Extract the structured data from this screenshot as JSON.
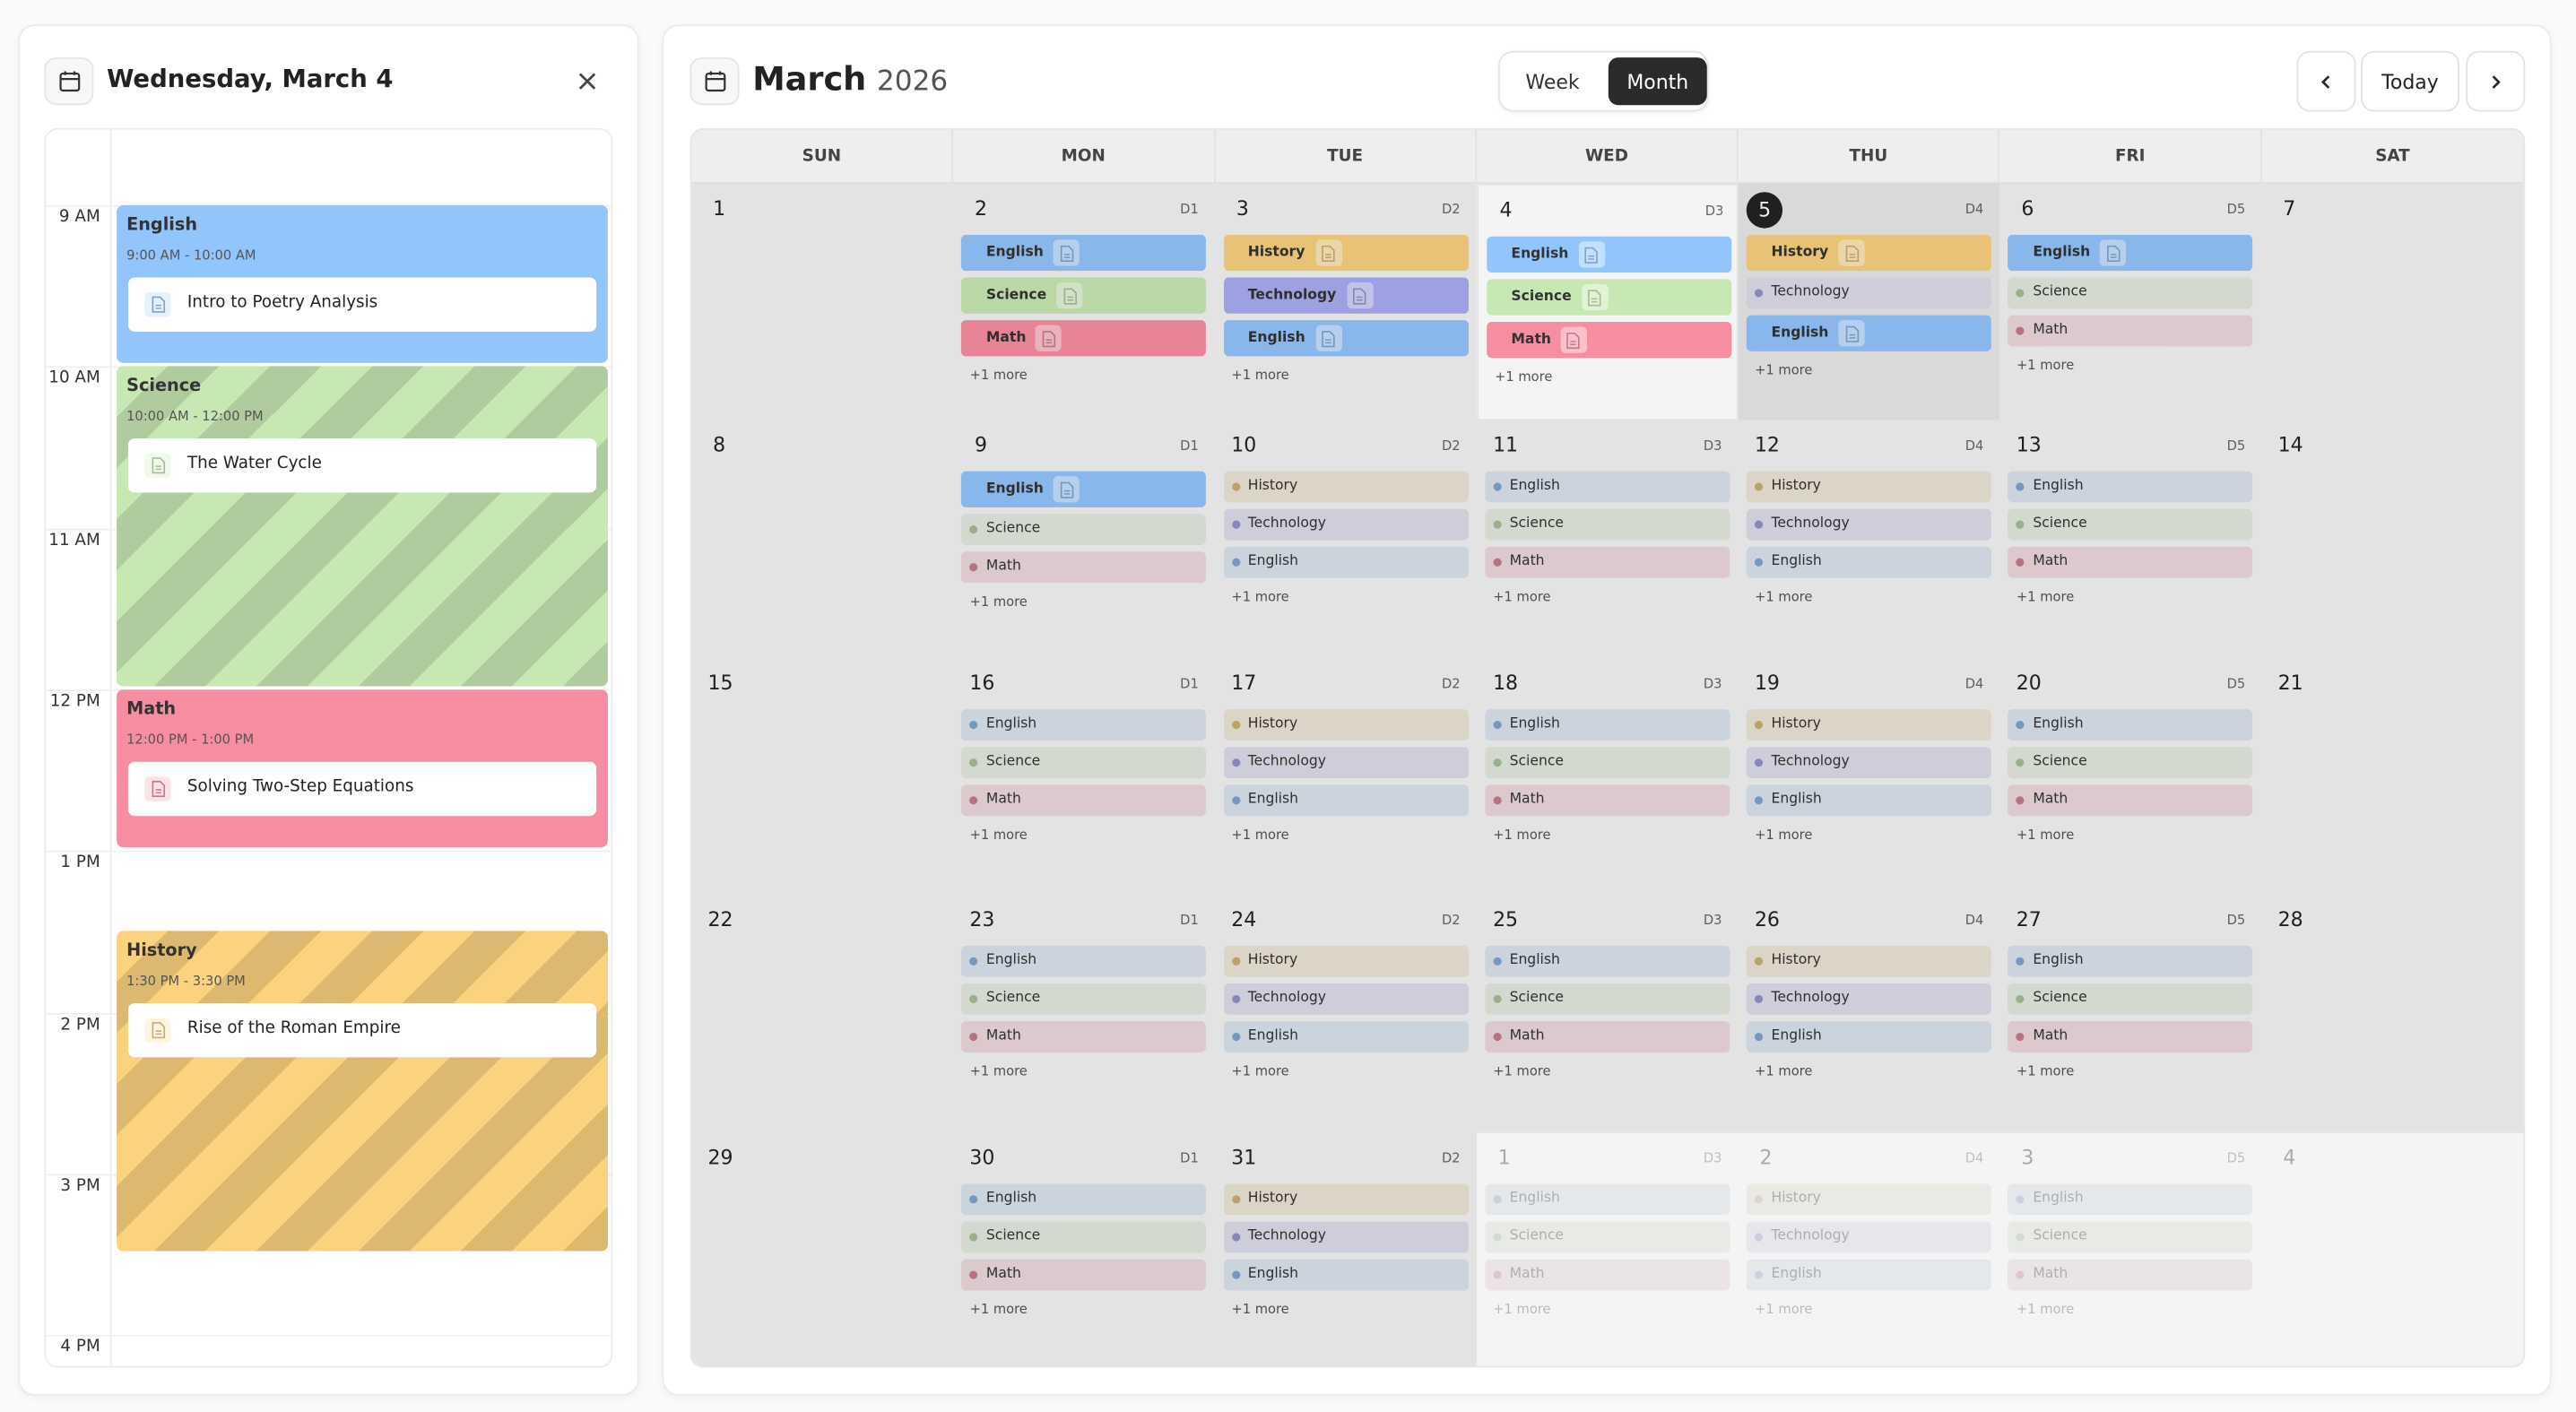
{
  "sidebar": {
    "title": "Wednesday, March 4",
    "hours": [
      "9 AM",
      "10 AM",
      "11 AM",
      "12 PM",
      "1 PM",
      "2 PM",
      "3 PM",
      "4 PM"
    ],
    "events": [
      {
        "subject": "English",
        "time": "9:00 AM - 10:00 AM",
        "lesson": "Intro to Poetry Analysis"
      },
      {
        "subject": "Science",
        "time": "10:00 AM - 12:00 PM",
        "lesson": "The Water Cycle"
      },
      {
        "subject": "Math",
        "time": "12:00 PM - 1:00 PM",
        "lesson": "Solving Two-Step Equations"
      },
      {
        "subject": "History",
        "time": "1:30 PM - 3:30 PM",
        "lesson": "Rise of the Roman Empire"
      }
    ]
  },
  "header": {
    "month": "March",
    "year": "2026",
    "views": [
      "Week",
      "Month"
    ],
    "active_view": "Month",
    "today": "Today"
  },
  "subject_colors": {
    "English": "#93c5fd",
    "Science": "#c8e8b3",
    "Math": "#f78da0",
    "History": "#fbd27e",
    "Technology": "#a9acf2"
  },
  "calendar": {
    "weekdays": [
      "SUN",
      "MON",
      "TUE",
      "WED",
      "THU",
      "FRI",
      "SAT"
    ],
    "weeks": [
      [
        {
          "day": "1"
        },
        {
          "day": "2",
          "d": "D1",
          "events": [
            "English",
            "Science",
            "Math"
          ],
          "solid": [
            true,
            true,
            true
          ],
          "more": "+1 more"
        },
        {
          "day": "3",
          "d": "D2",
          "events": [
            "History",
            "Technology",
            "English"
          ],
          "solid": [
            true,
            true,
            true
          ],
          "more": "+1 more"
        },
        {
          "day": "4",
          "d": "D3",
          "events": [
            "English",
            "Science",
            "Math"
          ],
          "solid": [
            true,
            true,
            true
          ],
          "more": "+1 more",
          "selected": true
        },
        {
          "day": "5",
          "d": "D4",
          "events": [
            "History",
            "Technology",
            "English"
          ],
          "solid": [
            true,
            false,
            true
          ],
          "more": "+1 more",
          "today": true
        },
        {
          "day": "6",
          "d": "D5",
          "events": [
            "English",
            "Science",
            "Math"
          ],
          "solid": [
            true,
            false,
            false
          ],
          "more": "+1 more"
        },
        {
          "day": "7"
        }
      ],
      [
        {
          "day": "8"
        },
        {
          "day": "9",
          "d": "D1",
          "events": [
            "English",
            "Science",
            "Math"
          ],
          "solid": [
            true,
            false,
            false
          ],
          "more": "+1 more"
        },
        {
          "day": "10",
          "d": "D2",
          "events": [
            "History",
            "Technology",
            "English"
          ],
          "more": "+1 more"
        },
        {
          "day": "11",
          "d": "D3",
          "events": [
            "English",
            "Science",
            "Math"
          ],
          "more": "+1 more"
        },
        {
          "day": "12",
          "d": "D4",
          "events": [
            "History",
            "Technology",
            "English"
          ],
          "more": "+1 more"
        },
        {
          "day": "13",
          "d": "D5",
          "events": [
            "English",
            "Science",
            "Math"
          ],
          "more": "+1 more"
        },
        {
          "day": "14"
        }
      ],
      [
        {
          "day": "15"
        },
        {
          "day": "16",
          "d": "D1",
          "events": [
            "English",
            "Science",
            "Math"
          ],
          "more": "+1 more"
        },
        {
          "day": "17",
          "d": "D2",
          "events": [
            "History",
            "Technology",
            "English"
          ],
          "more": "+1 more"
        },
        {
          "day": "18",
          "d": "D3",
          "events": [
            "English",
            "Science",
            "Math"
          ],
          "more": "+1 more"
        },
        {
          "day": "19",
          "d": "D4",
          "events": [
            "History",
            "Technology",
            "English"
          ],
          "more": "+1 more"
        },
        {
          "day": "20",
          "d": "D5",
          "events": [
            "English",
            "Science",
            "Math"
          ],
          "more": "+1 more"
        },
        {
          "day": "21"
        }
      ],
      [
        {
          "day": "22"
        },
        {
          "day": "23",
          "d": "D1",
          "events": [
            "English",
            "Science",
            "Math"
          ],
          "more": "+1 more"
        },
        {
          "day": "24",
          "d": "D2",
          "events": [
            "History",
            "Technology",
            "English"
          ],
          "more": "+1 more"
        },
        {
          "day": "25",
          "d": "D3",
          "events": [
            "English",
            "Science",
            "Math"
          ],
          "more": "+1 more"
        },
        {
          "day": "26",
          "d": "D4",
          "events": [
            "History",
            "Technology",
            "English"
          ],
          "more": "+1 more"
        },
        {
          "day": "27",
          "d": "D5",
          "events": [
            "English",
            "Science",
            "Math"
          ],
          "more": "+1 more"
        },
        {
          "day": "28"
        }
      ],
      [
        {
          "day": "29"
        },
        {
          "day": "30",
          "d": "D1",
          "events": [
            "English",
            "Science",
            "Math"
          ],
          "more": "+1 more"
        },
        {
          "day": "31",
          "d": "D2",
          "events": [
            "History",
            "Technology",
            "English"
          ],
          "more": "+1 more"
        },
        {
          "day": "1",
          "d": "D3",
          "events": [
            "English",
            "Science",
            "Math"
          ],
          "more": "+1 more",
          "faded": true
        },
        {
          "day": "2",
          "d": "D4",
          "events": [
            "History",
            "Technology",
            "English"
          ],
          "more": "+1 more",
          "faded": true
        },
        {
          "day": "3",
          "d": "D5",
          "events": [
            "English",
            "Science",
            "Math"
          ],
          "more": "+1 more",
          "faded": true
        },
        {
          "day": "4",
          "faded": true
        }
      ]
    ]
  }
}
